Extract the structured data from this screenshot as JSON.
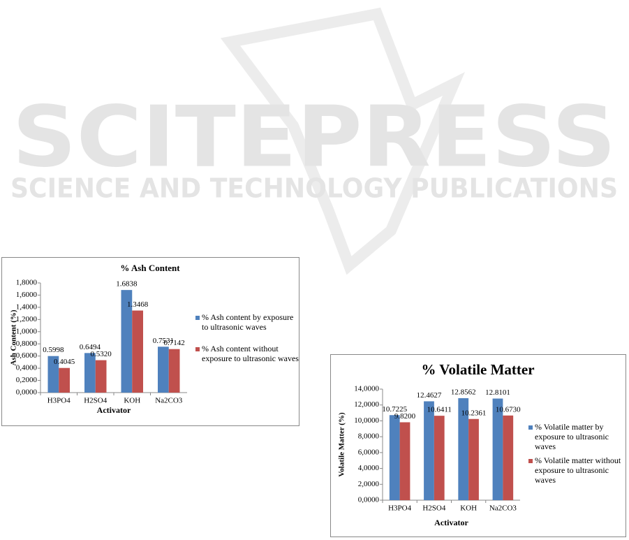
{
  "watermark": {
    "title": "SCITEPRESS",
    "subtitle": "SCIENCE AND TECHNOLOGY PUBLICATIONS"
  },
  "chart_data": [
    {
      "type": "bar",
      "title": "% Ash Content",
      "x_label": "Activator",
      "y_label": "Ash Content (%)",
      "categories": [
        "H3PO4",
        "H2SO4",
        "KOH",
        "Na2CO3"
      ],
      "series": [
        {
          "name": "% Ash content by exposure to ultrasonic waves",
          "color": "#4f81bd",
          "values": [
            0.5998,
            0.6494,
            1.6838,
            0.7531
          ],
          "value_labels": [
            "0.5998",
            "0.6494",
            "1.6838",
            "0.7531"
          ]
        },
        {
          "name": "% Ash content without exposure to ultrasonic waves",
          "color": "#c0504d",
          "values": [
            0.4045,
            0.532,
            1.3468,
            0.7142
          ],
          "value_labels": [
            "0.4045",
            "0.5320",
            "1.3468",
            "0.7142"
          ]
        }
      ],
      "ylim": [
        0,
        1.8
      ],
      "yticks": [
        {
          "value": 0,
          "label": "0,0000"
        },
        {
          "value": 0.2,
          "label": "0,2000"
        },
        {
          "value": 0.4,
          "label": "0,4000"
        },
        {
          "value": 0.6,
          "label": "0,6000"
        },
        {
          "value": 0.8,
          "label": "0,8000"
        },
        {
          "value": 1.0,
          "label": "1,0000"
        },
        {
          "value": 1.2,
          "label": "1,2000"
        },
        {
          "value": 1.4,
          "label": "1,4000"
        },
        {
          "value": 1.6,
          "label": "1,6000"
        },
        {
          "value": 1.8,
          "label": "1,8000"
        }
      ],
      "grid": false,
      "legend": "right"
    },
    {
      "type": "bar",
      "title": "% Volatile Matter",
      "x_label": "Activator",
      "y_label": "Volatile Matter (%)",
      "categories": [
        "H3PO4",
        "H2SO4",
        "KOH",
        "Na2CO3"
      ],
      "series": [
        {
          "name": "% Volatile matter by exposure to ultrasonic waves",
          "color": "#4f81bd",
          "values": [
            10.7225,
            12.4627,
            12.8562,
            12.8101
          ],
          "value_labels": [
            "10.7225",
            "12.4627",
            "12.8562",
            "12.8101"
          ]
        },
        {
          "name": "% Volatile matter without exposure to ultrasonic waves",
          "color": "#c0504d",
          "values": [
            9.82,
            10.6411,
            10.2361,
            10.673
          ],
          "value_labels": [
            "9.8200",
            "10.6411",
            "10.2361",
            "10.6730"
          ]
        }
      ],
      "ylim": [
        0,
        14
      ],
      "yticks": [
        {
          "value": 0,
          "label": "0,0000"
        },
        {
          "value": 2,
          "label": "2,0000"
        },
        {
          "value": 4,
          "label": "4,0000"
        },
        {
          "value": 6,
          "label": "6,0000"
        },
        {
          "value": 8,
          "label": "8,0000"
        },
        {
          "value": 10,
          "label": "10,0000"
        },
        {
          "value": 12,
          "label": "12,0000"
        },
        {
          "value": 14,
          "label": "14,0000"
        }
      ],
      "grid": false,
      "legend": "right"
    }
  ]
}
